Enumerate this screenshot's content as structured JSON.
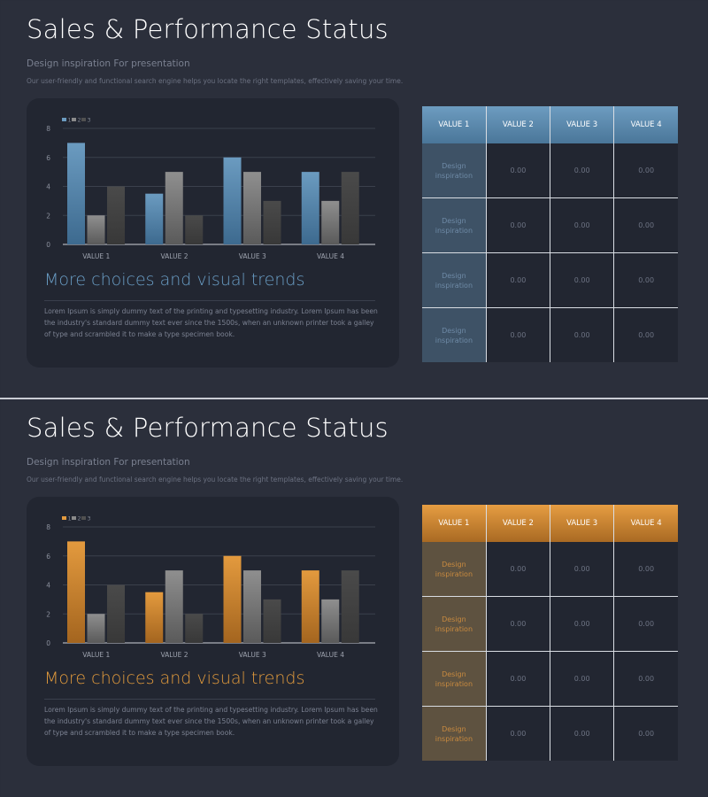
{
  "slides": [
    {
      "title": "Sales & Performance Status",
      "subtitle": "Design inspiration For presentation",
      "description": "Our user-friendly and functional search engine helps you locate the right templates, effectively saving your time.",
      "heading": "More choices and visual trends",
      "body": "Lorem Ipsum is simply dummy text of the printing and typesetting industry. Lorem Ipsum has been the industry's standard dummy text ever since the 1500s, when an unknown printer took a galley of type and scrambled it to make a type specimen book.",
      "colors": {
        "accent": "#6b9bc0",
        "accent_dark": "#3d6a8f",
        "heading": "#6a9ec6",
        "first_col_bg": "#3e5266",
        "first_col_text": "#6e8aa6",
        "header_light": "#6d9cc0",
        "header_dark": "#4a7699"
      },
      "chart_data": {
        "type": "bar",
        "categories": [
          "VALUE 1",
          "VALUE 2",
          "VALUE 3",
          "VALUE 4"
        ],
        "series": [
          {
            "name": "1",
            "values": [
              7,
              3.5,
              6,
              5
            ]
          },
          {
            "name": "2",
            "values": [
              2,
              5,
              5,
              3
            ]
          },
          {
            "name": "3",
            "values": [
              4,
              2,
              3,
              5
            ]
          }
        ],
        "ylim": [
          0,
          8
        ],
        "yticks": [
          0,
          2,
          4,
          6,
          8
        ],
        "legend": "top-left",
        "grid": true,
        "title": "",
        "xlabel": "",
        "ylabel": ""
      },
      "table": {
        "headers": [
          "VALUE 1",
          "VALUE 2",
          "VALUE 3",
          "VALUE 4"
        ],
        "rows": [
          [
            "Design inspiration",
            "0.00",
            "0.00",
            "0.00"
          ],
          [
            "Design inspiration",
            "0.00",
            "0.00",
            "0.00"
          ],
          [
            "Design inspiration",
            "0.00",
            "0.00",
            "0.00"
          ],
          [
            "Design inspiration",
            "0.00",
            "0.00",
            "0.00"
          ]
        ]
      }
    },
    {
      "title": "Sales & Performance Status",
      "subtitle": "Design inspiration For presentation",
      "description": "Our user-friendly and functional search engine helps you locate the right templates, effectively saving your time.",
      "heading": "More choices and visual trends",
      "body": "Lorem Ipsum is simply dummy text of the printing and typesetting industry. Lorem Ipsum has been the industry's standard dummy text ever since the 1500s, when an unknown printer took a galley of type and scrambled it to make a type specimen book.",
      "colors": {
        "accent": "#e39a3e",
        "accent_dark": "#a4651f",
        "heading": "#e39b3c",
        "first_col_bg": "#5e5240",
        "first_col_text": "#c88a3f",
        "header_light": "#e69d42",
        "header_dark": "#a96a23"
      },
      "chart_data": {
        "type": "bar",
        "categories": [
          "VALUE 1",
          "VALUE 2",
          "VALUE 3",
          "VALUE 4"
        ],
        "series": [
          {
            "name": "1",
            "values": [
              7,
              3.5,
              6,
              5
            ]
          },
          {
            "name": "2",
            "values": [
              2,
              5,
              5,
              3
            ]
          },
          {
            "name": "3",
            "values": [
              4,
              2,
              3,
              5
            ]
          }
        ],
        "ylim": [
          0,
          8
        ],
        "yticks": [
          0,
          2,
          4,
          6,
          8
        ],
        "legend": "top-left",
        "grid": true,
        "title": "",
        "xlabel": "",
        "ylabel": ""
      },
      "table": {
        "headers": [
          "VALUE 1",
          "VALUE 2",
          "VALUE 3",
          "VALUE 4"
        ],
        "rows": [
          [
            "Design inspiration",
            "0.00",
            "0.00",
            "0.00"
          ],
          [
            "Design inspiration",
            "0.00",
            "0.00",
            "0.00"
          ],
          [
            "Design inspiration",
            "0.00",
            "0.00",
            "0.00"
          ],
          [
            "Design inspiration",
            "0.00",
            "0.00",
            "0.00"
          ]
        ]
      }
    }
  ]
}
